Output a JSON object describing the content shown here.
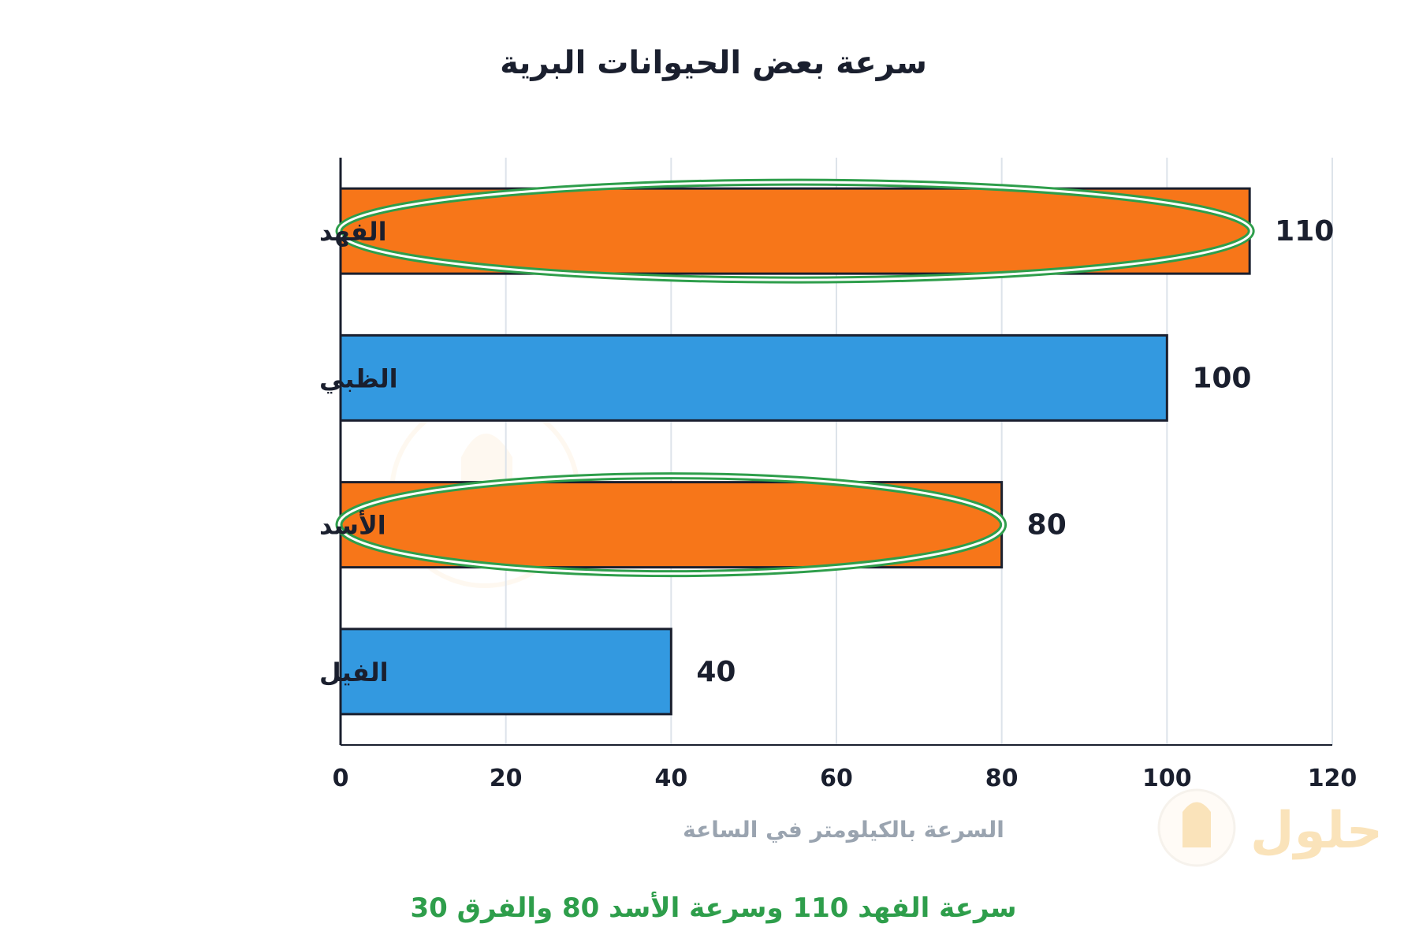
{
  "chart_data": {
    "type": "bar",
    "orientation": "horizontal",
    "title": "سرعة بعض الحيوانات البرية",
    "categories": [
      "الفهد",
      "الظبي",
      "الأسد",
      "الفيل"
    ],
    "values": [
      110,
      100,
      80,
      40
    ],
    "bar_colors": [
      "#f77619",
      "#3399e0",
      "#f77619",
      "#3399e0"
    ],
    "highlighted": [
      "الفهد",
      "الأسد"
    ],
    "xlabel": "السرعة بالكيلومتر في الساعة",
    "xlim": [
      0,
      120
    ],
    "xticks": [
      0,
      20,
      40,
      60,
      80,
      100,
      120
    ],
    "grid": true
  },
  "caption": {
    "parts": [
      "سرعة الفهد ",
      "110",
      " وسرعة الأسد ",
      "80",
      " والفرق ",
      "30"
    ]
  },
  "watermark": {
    "text": "حلول"
  },
  "colors": {
    "orange": "#f77619",
    "blue": "#3399e0",
    "highlight_ring": "#2e9e4b",
    "grid": "#dde3ea",
    "text": "#1a1f2e",
    "axis_title": "#9aa4b0",
    "caption": "#2e9e4b"
  }
}
